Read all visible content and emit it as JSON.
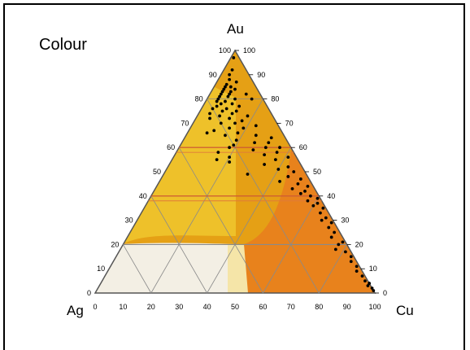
{
  "title": "Colour",
  "vertices": {
    "top": "Au",
    "left": "Ag",
    "right": "Cu"
  },
  "ticks": {
    "bottom": [
      "0",
      "10",
      "20",
      "30",
      "40",
      "50",
      "60",
      "70",
      "80",
      "90",
      "100"
    ],
    "left": [
      "0",
      "10",
      "20",
      "30",
      "40",
      "50",
      "60",
      "70",
      "80",
      "90",
      "100"
    ],
    "right": [
      "100",
      "90",
      "80",
      "70",
      "60",
      "50",
      "40",
      "30",
      "20",
      "10",
      "0"
    ]
  },
  "colors": {
    "gold_deep": "#e5a015",
    "gold_yellow": "#eec12a",
    "copper_orange": "#e8821c",
    "light_yellow": "#f5e5a8",
    "pale": "#f3efe4",
    "point": "#000000"
  },
  "chart_data": {
    "type": "scatter",
    "coordinates": "ternary (Au %, Ag %, Cu %)",
    "points": [
      {
        "au": 97,
        "ag": 2,
        "cu": 1
      },
      {
        "au": 92,
        "ag": 5,
        "cu": 3
      },
      {
        "au": 90,
        "ag": 7,
        "cu": 3
      },
      {
        "au": 88,
        "ag": 8,
        "cu": 4
      },
      {
        "au": 87,
        "ag": 6,
        "cu": 7
      },
      {
        "au": 86,
        "ag": 10,
        "cu": 4
      },
      {
        "au": 85,
        "ag": 9,
        "cu": 6
      },
      {
        "au": 85,
        "ag": 11,
        "cu": 4
      },
      {
        "au": 84,
        "ag": 12,
        "cu": 4
      },
      {
        "au": 84,
        "ag": 8,
        "cu": 8
      },
      {
        "au": 83,
        "ag": 13,
        "cu": 4
      },
      {
        "au": 83,
        "ag": 10,
        "cu": 7
      },
      {
        "au": 82,
        "ag": 14,
        "cu": 4
      },
      {
        "au": 82,
        "ag": 11,
        "cu": 7
      },
      {
        "au": 81,
        "ag": 15,
        "cu": 4
      },
      {
        "au": 81,
        "ag": 12,
        "cu": 7
      },
      {
        "au": 80,
        "ag": 16,
        "cu": 4
      },
      {
        "au": 80,
        "ag": 10,
        "cu": 10
      },
      {
        "au": 79,
        "ag": 14,
        "cu": 7
      },
      {
        "au": 79,
        "ag": 17,
        "cu": 4
      },
      {
        "au": 78,
        "ag": 12,
        "cu": 10
      },
      {
        "au": 78,
        "ag": 16,
        "cu": 6
      },
      {
        "au": 77,
        "ag": 18,
        "cu": 5
      },
      {
        "au": 77,
        "ag": 10,
        "cu": 13
      },
      {
        "au": 76,
        "ag": 15,
        "cu": 9
      },
      {
        "au": 76,
        "ag": 20,
        "cu": 4
      },
      {
        "au": 75,
        "ag": 12,
        "cu": 13
      },
      {
        "au": 75,
        "ag": 17,
        "cu": 8
      },
      {
        "au": 74,
        "ag": 22,
        "cu": 4
      },
      {
        "au": 74,
        "ag": 14,
        "cu": 12
      },
      {
        "au": 73,
        "ag": 9,
        "cu": 18
      },
      {
        "au": 73,
        "ag": 19,
        "cu": 8
      },
      {
        "au": 72,
        "ag": 16,
        "cu": 12
      },
      {
        "au": 72,
        "ag": 23,
        "cu": 5
      },
      {
        "au": 71,
        "ag": 12,
        "cu": 17
      },
      {
        "au": 70,
        "ag": 20,
        "cu": 10
      },
      {
        "au": 70,
        "ag": 15,
        "cu": 15
      },
      {
        "au": 69,
        "ag": 8,
        "cu": 23
      },
      {
        "au": 68,
        "ag": 18,
        "cu": 14
      },
      {
        "au": 68,
        "ag": 13,
        "cu": 19
      },
      {
        "au": 67,
        "ag": 24,
        "cu": 9
      },
      {
        "au": 66,
        "ag": 16,
        "cu": 18
      },
      {
        "au": 65,
        "ag": 10,
        "cu": 25
      },
      {
        "au": 65,
        "ag": 21,
        "cu": 14
      },
      {
        "au": 64,
        "ag": 5,
        "cu": 31
      },
      {
        "au": 63,
        "ag": 18,
        "cu": 19
      },
      {
        "au": 62,
        "ag": 12,
        "cu": 26
      },
      {
        "au": 62,
        "ag": 7,
        "cu": 31
      },
      {
        "au": 61,
        "ag": 20,
        "cu": 19
      },
      {
        "au": 60,
        "ag": 9,
        "cu": 31
      },
      {
        "au": 60,
        "ag": 4,
        "cu": 36
      },
      {
        "au": 59,
        "ag": 14,
        "cu": 27
      },
      {
        "au": 58,
        "ag": 6,
        "cu": 36
      },
      {
        "au": 57,
        "ag": 11,
        "cu": 32
      },
      {
        "au": 56,
        "ag": 3,
        "cu": 41
      },
      {
        "au": 55,
        "ag": 8,
        "cu": 37
      },
      {
        "au": 54,
        "ag": 25,
        "cu": 21
      },
      {
        "au": 53,
        "ag": 13,
        "cu": 34
      },
      {
        "au": 52,
        "ag": 5,
        "cu": 43
      },
      {
        "au": 51,
        "ag": 9,
        "cu": 40
      },
      {
        "au": 50,
        "ag": 4,
        "cu": 46
      },
      {
        "au": 49,
        "ag": 21,
        "cu": 30
      },
      {
        "au": 48,
        "ag": 7,
        "cu": 45
      },
      {
        "au": 47,
        "ag": 3,
        "cu": 50
      },
      {
        "au": 46,
        "ag": 11,
        "cu": 43
      },
      {
        "au": 45,
        "ag": 5,
        "cu": 50
      },
      {
        "au": 44,
        "ag": 2,
        "cu": 54
      },
      {
        "au": 43,
        "ag": 8,
        "cu": 49
      },
      {
        "au": 42,
        "ag": 4,
        "cu": 54
      },
      {
        "au": 41,
        "ag": 6,
        "cu": 53
      },
      {
        "au": 40,
        "ag": 3,
        "cu": 57
      },
      {
        "au": 39,
        "ag": 1,
        "cu": 60
      },
      {
        "au": 38,
        "ag": 5,
        "cu": 57
      },
      {
        "au": 37,
        "ag": 2,
        "cu": 61
      },
      {
        "au": 36,
        "ag": 4,
        "cu": 60
      },
      {
        "au": 35,
        "ag": 1,
        "cu": 64
      },
      {
        "au": 33,
        "ag": 3,
        "cu": 64
      },
      {
        "au": 31,
        "ag": 2,
        "cu": 67
      },
      {
        "au": 30,
        "ag": 4,
        "cu": 66
      },
      {
        "au": 29,
        "ag": 1,
        "cu": 70
      },
      {
        "au": 27,
        "ag": 3,
        "cu": 70
      },
      {
        "au": 25,
        "ag": 2,
        "cu": 73
      },
      {
        "au": 23,
        "ag": 4,
        "cu": 73
      },
      {
        "au": 21,
        "ag": 1,
        "cu": 78
      },
      {
        "au": 20,
        "ag": 3,
        "cu": 77
      },
      {
        "au": 18,
        "ag": 5,
        "cu": 77
      },
      {
        "au": 17,
        "ag": 2,
        "cu": 81
      },
      {
        "au": 15,
        "ag": 1,
        "cu": 84
      },
      {
        "au": 13,
        "ag": 2,
        "cu": 85
      },
      {
        "au": 11,
        "ag": 1,
        "cu": 88
      },
      {
        "au": 9,
        "ag": 2,
        "cu": 89
      },
      {
        "au": 7,
        "ag": 1,
        "cu": 92
      },
      {
        "au": 5,
        "ag": 1,
        "cu": 94
      },
      {
        "au": 4,
        "ag": 0,
        "cu": 96
      },
      {
        "au": 3,
        "ag": 1,
        "cu": 96
      },
      {
        "au": 2,
        "ag": 0,
        "cu": 98
      },
      {
        "au": 1,
        "ag": 0,
        "cu": 99
      },
      {
        "au": 60,
        "ag": 22,
        "cu": 18
      },
      {
        "au": 58,
        "ag": 27,
        "cu": 15
      },
      {
        "au": 56,
        "ag": 24,
        "cu": 20
      },
      {
        "au": 55,
        "ag": 29,
        "cu": 16
      },
      {
        "au": 80,
        "ag": 4,
        "cu": 16
      },
      {
        "au": 82,
        "ag": 5,
        "cu": 13
      },
      {
        "au": 66,
        "ag": 27,
        "cu": 7
      }
    ]
  }
}
